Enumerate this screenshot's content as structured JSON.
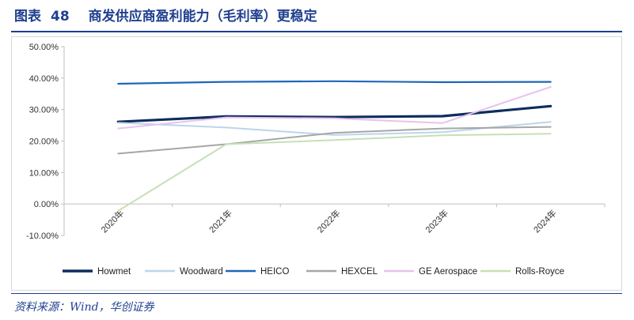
{
  "header": {
    "title_prefix": "图表",
    "title_number": "48",
    "title_text": "商发供应商盈利能力（毛利率）更稳定"
  },
  "footer": {
    "source": "资料来源：Wind，华创证券"
  },
  "chart_data": {
    "type": "line",
    "categories": [
      "2020年",
      "2021年",
      "2022年",
      "2023年",
      "2024年"
    ],
    "y_ticks": [
      "-10.00%",
      "0.00%",
      "10.00%",
      "20.00%",
      "30.00%",
      "40.00%",
      "50.00%"
    ],
    "ylim": [
      -10,
      50
    ],
    "y_unit": "%",
    "grid": false,
    "legend_position": "bottom",
    "series": [
      {
        "name": "Howmet",
        "color": "#0e2d5e",
        "width": 3.2,
        "values": [
          26.1,
          27.8,
          27.6,
          27.9,
          31.1
        ]
      },
      {
        "name": "Woodward",
        "color": "#bcd5ea",
        "width": 2,
        "values": [
          25.8,
          24.3,
          21.9,
          22.8,
          26.1
        ]
      },
      {
        "name": "HEICO",
        "color": "#1f67b8",
        "width": 2.2,
        "values": [
          38.2,
          38.8,
          39.0,
          38.7,
          38.8
        ]
      },
      {
        "name": "HEXCEL",
        "color": "#a6a6a6",
        "width": 2,
        "values": [
          16.0,
          19.0,
          22.6,
          24.0,
          24.5
        ]
      },
      {
        "name": "GE Aerospace",
        "color": "#e6c3ec",
        "width": 2,
        "values": [
          24.0,
          27.5,
          27.2,
          25.7,
          37.2
        ]
      },
      {
        "name": "Rolls-Royce",
        "color": "#c6e0b4",
        "width": 2,
        "values": [
          -2.2,
          19.0,
          20.3,
          21.8,
          22.3
        ]
      }
    ]
  }
}
